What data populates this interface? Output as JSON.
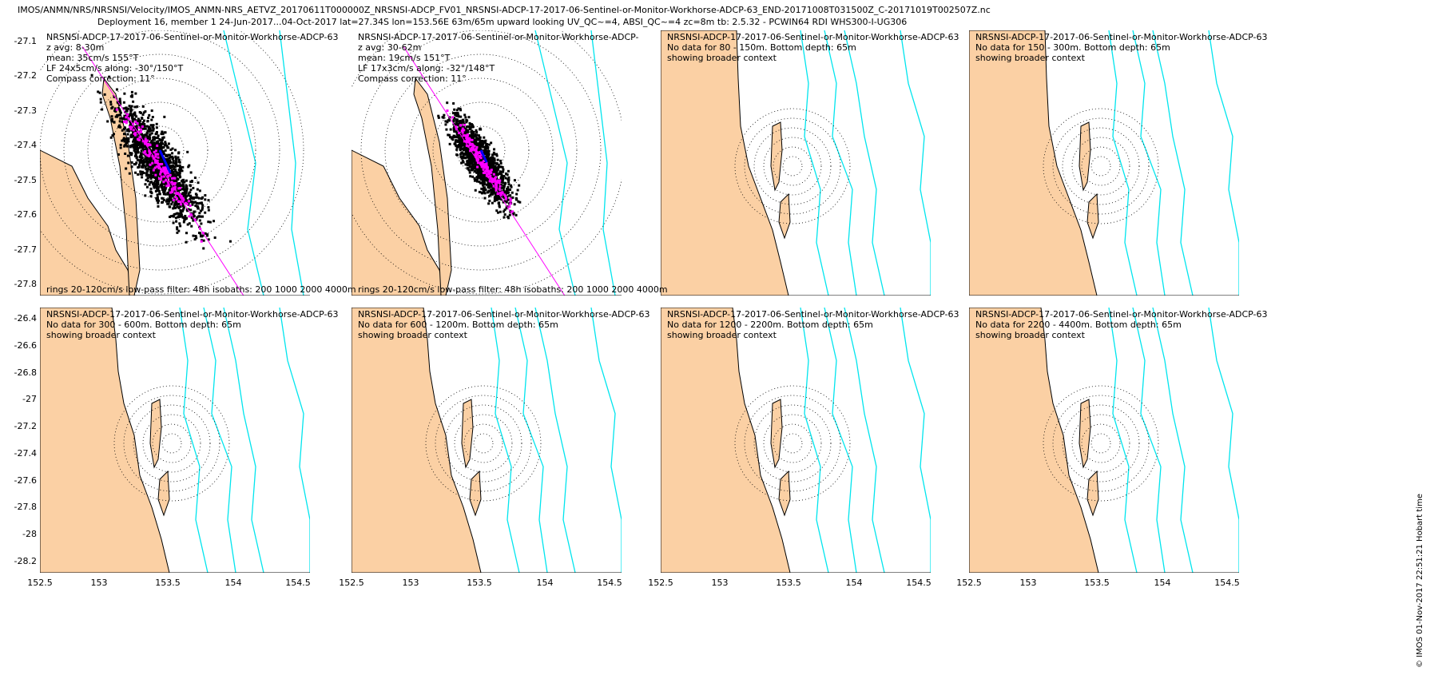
{
  "header": {
    "line1": "IMOS/ANMN/NRS/NRSNSI/Velocity/IMOS_ANMN-NRS_AETVZ_20170611T000000Z_NRSNSI-ADCP_FV01_NRSNSI-ADCP-17-2017-06-Sentinel-or-Monitor-Workhorse-ADCP-63_END-20171008T031500Z_C-20171019T002507Z.nc",
    "line2": "Deployment 16, member 1 24-Jun-2017...04-Oct-2017 lat=27.34S lon=153.56E 63m/65m upward looking UV_QC~=4, ABSI_QC~=4 zc=8m tb: 2.5.32 - PCWIN64 RDI WHS300-I-UG306"
  },
  "credit": "© IMOS 01-Nov-2017 22:51:21 Hobart time",
  "colors": {
    "land": "#FBD0A4",
    "isobath": "#00E5EE",
    "scatter": "#000000",
    "lowpass": "#FF00FF",
    "mean": "#0000FF",
    "coast": "#000000"
  },
  "chart_data": [
    {
      "type": "scatter",
      "title": "NRSNSI-ADCP-17-2017-06-Sentinel-or-Monitor-Workhorse-ADCP-63",
      "lines": [
        "z avg: 8-30m",
        "mean: 35cm/s 155°T",
        "LF 24x5cm/s along: -30°/150°T",
        "Compass correction: 11°"
      ],
      "footer": "rings 20-120cm/s low-pass filter: 48h isobaths: 200 1000 2000 4000m",
      "ylim": [
        -27.85,
        -27.05
      ],
      "yticks": [
        "-27.1",
        "-27.2",
        "-27.3",
        "-27.4",
        "-27.5",
        "-27.6",
        "-27.7",
        "-27.8"
      ],
      "xticks": [],
      "mean": {
        "speed_cms": 35,
        "direction_degT": 155
      },
      "lowpass": {
        "major_cms": 24,
        "minor_cms": 5,
        "along_deg": -30,
        "along_degT": 150
      },
      "compass_correction_deg": 11,
      "ring_spacing_cms": 20,
      "rings_cms": [
        20,
        40,
        60,
        80,
        100,
        120
      ],
      "isobaths_m": [
        200,
        1000,
        2000,
        4000
      ]
    },
    {
      "type": "scatter",
      "title": "NRSNSI-ADCP-17-2017-06-Sentinel-or-Monitor-Workhorse-ADCP-",
      "lines": [
        "z avg: 30-62m",
        "mean: 19cm/s 151°T",
        "LF 17x3cm/s along: -32°/148°T",
        "Compass correction: 11°"
      ],
      "footer": "rings 20-120cm/s low-pass filter: 48h isobaths: 200 1000 2000 4000m",
      "ylim": [
        -27.85,
        -27.05
      ],
      "yticks": [],
      "xticks": [],
      "mean": {
        "speed_cms": 19,
        "direction_degT": 151
      },
      "lowpass": {
        "major_cms": 17,
        "minor_cms": 3,
        "along_deg": -32,
        "along_degT": 148
      },
      "compass_correction_deg": 11,
      "rings_cms": [
        20,
        40,
        60,
        80,
        100,
        120
      ],
      "isobaths_m": [
        200,
        1000,
        2000,
        4000
      ]
    },
    {
      "type": "map",
      "title": "NRSNSI-ADCP-17-2017-06-Sentinel-or-Monitor-Workhorse-ADCP-63",
      "lines": [
        "No data for 80 - 150m. Bottom depth: 65m",
        "showing broader context"
      ],
      "yticks": [],
      "xticks": []
    },
    {
      "type": "map",
      "title": "NRSNSI-ADCP-17-2017-06-Sentinel-or-Monitor-Workhorse-ADCP-63",
      "lines": [
        "No data for 150 - 300m. Bottom depth: 65m",
        "showing broader context"
      ],
      "yticks": [],
      "xticks": []
    },
    {
      "type": "map",
      "title": "NRSNSI-ADCP-17-2017-06-Sentinel-or-Monitor-Workhorse-ADCP-63",
      "lines": [
        "No data for 300 - 600m. Bottom depth: 65m",
        "showing broader context"
      ],
      "ylim": [
        -28.3,
        -26.35
      ],
      "yticks": [
        "-26.4",
        "-26.6",
        "-26.8",
        "-27",
        "-27.2",
        "-27.4",
        "-27.6",
        "-27.8",
        "-28",
        "-28.2"
      ],
      "xlim": [
        152.5,
        154.7
      ],
      "xticks": [
        "152.5",
        "153",
        "153.5",
        "154",
        "154.5"
      ]
    },
    {
      "type": "map",
      "title": "NRSNSI-ADCP-17-2017-06-Sentinel-or-Monitor-Workhorse-ADCP-63",
      "lines": [
        "No data for 600 - 1200m. Bottom depth: 65m",
        "showing broader context"
      ],
      "xlim": [
        152.5,
        154.7
      ],
      "yticks": [],
      "xticks": [
        "152.5",
        "153",
        "153.5",
        "154",
        "154.5"
      ]
    },
    {
      "type": "map",
      "title": "NRSNSI-ADCP-17-2017-06-Sentinel-or-Monitor-Workhorse-ADCP-63",
      "lines": [
        "No data for 1200 - 2200m. Bottom depth: 65m",
        "showing broader context"
      ],
      "xlim": [
        152.5,
        154.7
      ],
      "yticks": [],
      "xticks": [
        "152.5",
        "153",
        "153.5",
        "154",
        "154.5"
      ]
    },
    {
      "type": "map",
      "title": "NRSNSI-ADCP-17-2017-06-Sentinel-or-Monitor-Workhorse-ADCP-63",
      "lines": [
        "No data for 2200 - 4400m. Bottom depth: 65m",
        "showing broader context"
      ],
      "xlim": [
        152.5,
        154.7
      ],
      "yticks": [],
      "xticks": [
        "152.5",
        "153",
        "153.5",
        "154",
        "154.5"
      ]
    }
  ]
}
